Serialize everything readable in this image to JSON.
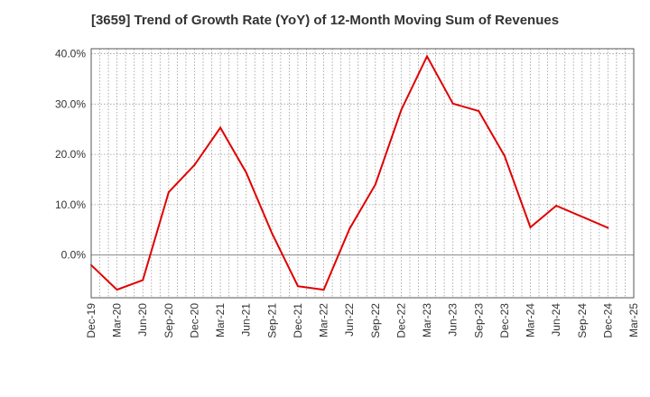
{
  "chart_data": {
    "type": "line",
    "title": "[3659]  Trend of Growth Rate (YoY) of 12-Month Moving Sum of Revenues",
    "xlabel": "",
    "ylabel": "",
    "categories": [
      "Dec-19",
      "Mar-20",
      "Jun-20",
      "Sep-20",
      "Dec-20",
      "Mar-21",
      "Jun-21",
      "Sep-21",
      "Dec-21",
      "Mar-22",
      "Jun-22",
      "Sep-22",
      "Dec-22",
      "Mar-23",
      "Jun-23",
      "Sep-23",
      "Dec-23",
      "Mar-24",
      "Jun-24",
      "Sep-24",
      "Dec-24",
      "Mar-25"
    ],
    "series": [
      {
        "values": [
          -2.0,
          -6.9,
          -5.0,
          12.5,
          17.9,
          25.3,
          16.4,
          4.3,
          -6.2,
          -6.9,
          5.2,
          14.0,
          28.8,
          39.5,
          30.1,
          28.6,
          19.7,
          5.5,
          9.8,
          7.6,
          5.4,
          null
        ]
      }
    ],
    "ylim": [
      -8.5,
      41
    ],
    "yticks": [
      0,
      10,
      20,
      30,
      40
    ],
    "ytick_labels": [
      "0.0%",
      "10.0%",
      "20.0%",
      "30.0%",
      "40.0%"
    ],
    "grid": true,
    "line_color": "#e00000"
  }
}
